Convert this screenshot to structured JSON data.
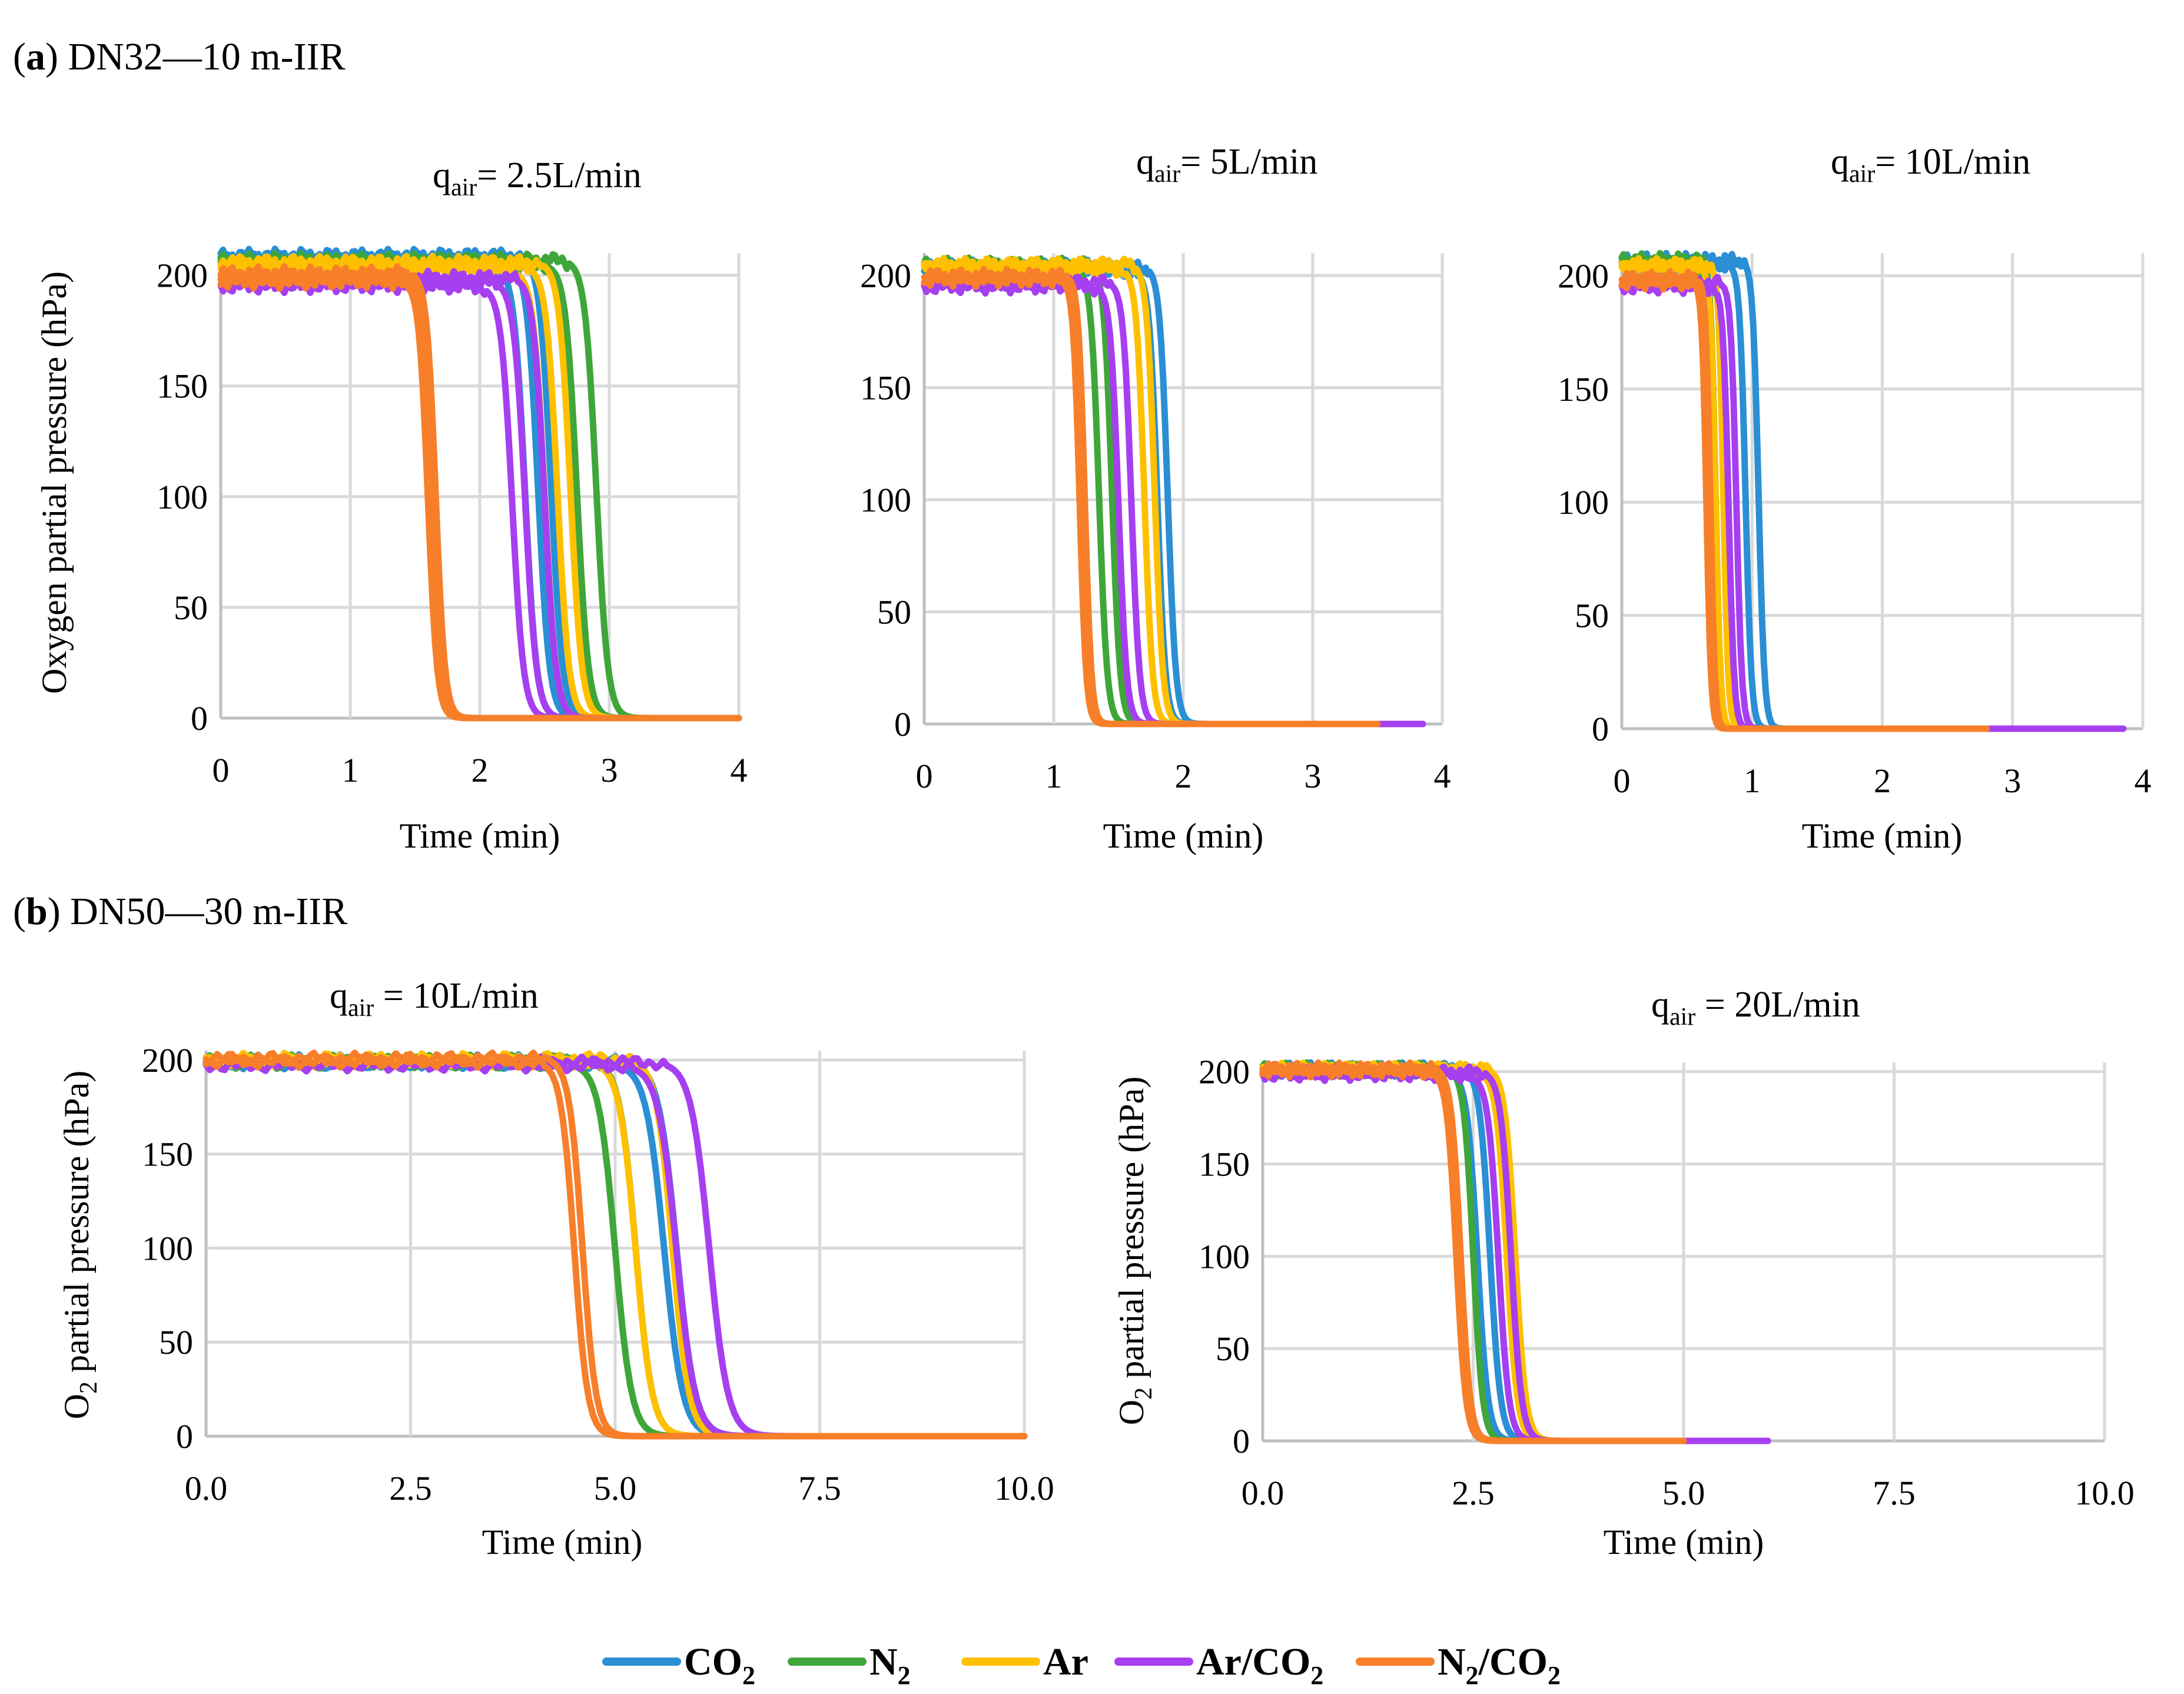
{
  "sections": [
    {
      "label_letter": "a",
      "label_text": "DN32—10 m-IIR"
    },
    {
      "label_letter": "b",
      "label_text": "DN50—30 m-IIR"
    }
  ],
  "colors": {
    "CO2": "#2a8fd4",
    "N2": "#3fa63a",
    "Ar": "#ffc000",
    "Ar/CO2": "#a63ff0",
    "N2/CO2": "#f77f2a"
  },
  "legend": [
    {
      "key": "CO2",
      "base": "CO",
      "sub": "2",
      "rest": ""
    },
    {
      "key": "N2",
      "base": "N",
      "sub": "2",
      "rest": ""
    },
    {
      "key": "Ar",
      "base": "Ar",
      "sub": "",
      "rest": ""
    },
    {
      "key": "Ar/CO2",
      "base": "Ar/CO",
      "sub": "2",
      "rest": ""
    },
    {
      "key": "N2/CO2",
      "base": "N",
      "sub": "2",
      "rest": "/CO",
      "sub2": "2"
    }
  ],
  "chart_data": [
    {
      "type": "line",
      "row": "a",
      "title_base": "q",
      "title_sub": "air",
      "title_rest": "= 2.5L/min",
      "xlabel": "Time (min)",
      "ylabel": "Oxygen partial pressure (hPa)",
      "ylabel_sub": "",
      "ylabel_rest": "",
      "xlim": [
        0,
        4
      ],
      "ylim": [
        0,
        210
      ],
      "xticks": [
        0,
        1,
        2,
        3,
        4
      ],
      "xtick_labels": [
        "0",
        "1",
        "2",
        "3",
        "4"
      ],
      "yticks": [
        0,
        50,
        100,
        150,
        200
      ],
      "ytick_labels": [
        "0",
        "50",
        "100",
        "150",
        "200"
      ],
      "series": [
        {
          "name": "CO2",
          "start": 205,
          "tmid": [
            2.35,
            2.45,
            2.55
          ],
          "width": 0.35,
          "tend": 4
        },
        {
          "name": "N2",
          "start": 205,
          "tmid": [
            2.75,
            2.9
          ],
          "width": 0.35,
          "tend": 4
        },
        {
          "name": "Ar",
          "start": 202,
          "tmid": [
            2.5,
            2.6,
            2.7
          ],
          "width": 0.35,
          "tend": 4
        },
        {
          "name": "Ar/CO2",
          "start": 195,
          "tmid": [
            2.25,
            2.35,
            2.5
          ],
          "width": 0.35,
          "tend": 4
        },
        {
          "name": "N2/CO2",
          "start": 197,
          "tmid": [
            1.6,
            1.63,
            1.66
          ],
          "width": 0.28,
          "tend": 4
        }
      ]
    },
    {
      "type": "line",
      "row": "a",
      "title_base": "q",
      "title_sub": "air",
      "title_rest": "= 5L/min",
      "xlabel": "Time (min)",
      "ylabel": "",
      "ylabel_sub": "",
      "ylabel_rest": "",
      "xlim": [
        0,
        4
      ],
      "ylim": [
        0,
        210
      ],
      "xticks": [
        0,
        1,
        2,
        3,
        4
      ],
      "xtick_labels": [
        "0",
        "1",
        "2",
        "3",
        "4"
      ],
      "yticks": [
        0,
        50,
        100,
        150,
        200
      ],
      "ytick_labels": [
        "0",
        "50",
        "100",
        "150",
        "200"
      ],
      "series": [
        {
          "name": "CO2",
          "start": 202,
          "tmid": [
            1.8,
            1.88
          ],
          "width": 0.25,
          "tend": 3.3
        },
        {
          "name": "N2",
          "start": 203,
          "tmid": [
            1.35,
            1.45
          ],
          "width": 0.25,
          "tend": 3.3
        },
        {
          "name": "Ar",
          "start": 203,
          "tmid": [
            1.7,
            1.78
          ],
          "width": 0.25,
          "tend": 3.3
        },
        {
          "name": "Ar/CO2",
          "start": 195,
          "tmid": [
            1.5,
            1.6
          ],
          "width": 0.25,
          "tend": 3.85
        },
        {
          "name": "N2/CO2",
          "start": 198,
          "tmid": [
            1.2,
            1.24
          ],
          "width": 0.2,
          "tend": 3.5
        }
      ]
    },
    {
      "type": "line",
      "row": "a",
      "title_base": "q",
      "title_sub": "air",
      "title_rest": "= 10L/min",
      "xlabel": "Time (min)",
      "ylabel": "",
      "ylabel_sub": "",
      "ylabel_rest": "",
      "xlim": [
        0,
        4
      ],
      "ylim": [
        0,
        210
      ],
      "xticks": [
        0,
        1,
        2,
        3,
        4
      ],
      "xtick_labels": [
        "0",
        "1",
        "2",
        "3",
        "4"
      ],
      "yticks": [
        0,
        50,
        100,
        150,
        200
      ],
      "ytick_labels": [
        "0",
        "50",
        "100",
        "150",
        "200"
      ],
      "series": [
        {
          "name": "CO2",
          "start": 205,
          "tmid": [
            0.95,
            1.05
          ],
          "width": 0.18,
          "tend": 3.0
        },
        {
          "name": "N2",
          "start": 205,
          "tmid": [
            0.68,
            0.72
          ],
          "width": 0.15,
          "tend": 2.8
        },
        {
          "name": "Ar",
          "start": 203,
          "tmid": [
            0.72,
            0.78
          ],
          "width": 0.15,
          "tend": 2.8
        },
        {
          "name": "Ar/CO2",
          "start": 195,
          "tmid": [
            0.82,
            0.88
          ],
          "width": 0.17,
          "tend": 3.85
        },
        {
          "name": "N2/CO2",
          "start": 197,
          "tmid": [
            0.65,
            0.68
          ],
          "width": 0.14,
          "tend": 2.8
        }
      ]
    },
    {
      "type": "line",
      "row": "b",
      "title_base": "q",
      "title_sub": "air",
      "title_rest": " = 10L/min",
      "xlabel": "Time (min)",
      "ylabel": "O",
      "ylabel_sub": "2",
      "ylabel_rest": " partial pressure (hPa)",
      "xlim": [
        0,
        10
      ],
      "ylim": [
        0,
        205
      ],
      "xticks": [
        0,
        2.5,
        5,
        7.5,
        10
      ],
      "xtick_labels": [
        "0.0",
        "2.5",
        "5.0",
        "7.5",
        "10.0"
      ],
      "yticks": [
        0,
        50,
        100,
        150,
        200
      ],
      "ytick_labels": [
        "0",
        "50",
        "100",
        "150",
        "200"
      ],
      "series": [
        {
          "name": "CO2",
          "start": 198,
          "tmid": [
            5.6,
            5.75
          ],
          "width": 0.9,
          "tend": 10
        },
        {
          "name": "N2",
          "start": 198,
          "tmid": [
            5.0,
            5.25
          ],
          "width": 0.8,
          "tend": 10
        },
        {
          "name": "Ar",
          "start": 199,
          "tmid": [
            5.25,
            5.7
          ],
          "width": 0.8,
          "tend": 10
        },
        {
          "name": "Ar/CO2",
          "start": 197,
          "tmid": [
            5.75,
            6.15
          ],
          "width": 0.9,
          "tend": 10
        },
        {
          "name": "N2/CO2",
          "start": 199,
          "tmid": [
            4.5,
            4.6
          ],
          "width": 0.65,
          "tend": 10
        }
      ]
    },
    {
      "type": "line",
      "row": "b",
      "title_base": "q",
      "title_sub": "air",
      "title_rest": " = 20L/min",
      "xlabel": "Time (min)",
      "ylabel": "O",
      "ylabel_sub": "2",
      "ylabel_rest": " partial pressure (hPa)",
      "xlim": [
        0,
        10
      ],
      "ylim": [
        0,
        205
      ],
      "xticks": [
        0,
        2.5,
        5,
        7.5,
        10
      ],
      "xtick_labels": [
        "0.0",
        "2.5",
        "5.0",
        "7.5",
        "10.0"
      ],
      "yticks": [
        0,
        50,
        100,
        150,
        200
      ],
      "ytick_labels": [
        "0",
        "50",
        "100",
        "150",
        "200"
      ],
      "series": [
        {
          "name": "CO2",
          "start": 200,
          "tmid": [
            2.55,
            2.7
          ],
          "width": 0.5,
          "tend": 5
        },
        {
          "name": "N2",
          "start": 200,
          "tmid": [
            2.35,
            2.5
          ],
          "width": 0.45,
          "tend": 5
        },
        {
          "name": "Ar",
          "start": 200,
          "tmid": [
            2.9,
            3.0
          ],
          "width": 0.5,
          "tend": 5
        },
        {
          "name": "Ar/CO2",
          "start": 198,
          "tmid": [
            2.8,
            2.95
          ],
          "width": 0.5,
          "tend": 6
        },
        {
          "name": "N2/CO2",
          "start": 200,
          "tmid": [
            2.3,
            2.35
          ],
          "width": 0.45,
          "tend": 5
        }
      ]
    }
  ]
}
